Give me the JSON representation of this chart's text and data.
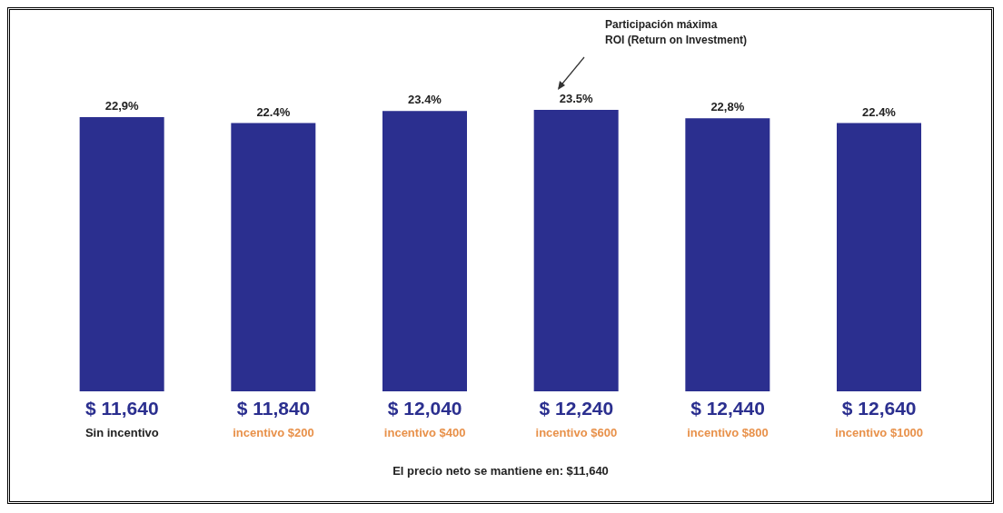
{
  "chart_data": {
    "type": "bar",
    "categories": [
      "$ 11,640\nSin incentivo",
      "$ 11,840\nincentivo $200",
      "$ 12,040\nincentivo $400",
      "$ 12,240\nincentivo $600",
      "$ 12,440\nincentivo $800",
      "$ 12,640\nincentivo $1000"
    ],
    "values": [
      22.9,
      22.4,
      23.4,
      23.5,
      22.8,
      22.4
    ],
    "value_labels": [
      "22,9%",
      "22.4%",
      "23.4%",
      "23.5%",
      "22,8%",
      "22.4%"
    ],
    "color": "#2b2f8f",
    "grid": false,
    "legend": false,
    "annotations": [
      "Participación máxima\nROI (Return on Investment)",
      "El precio neto se mantiene en: $11,640"
    ]
  }
}
